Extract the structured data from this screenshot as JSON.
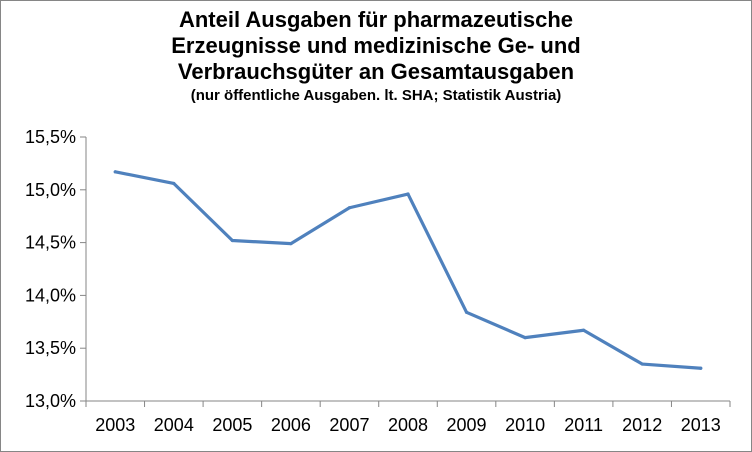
{
  "chart_data": {
    "type": "line",
    "title_lines": [
      "Anteil Ausgaben für pharmazeutische",
      "Erzeugnisse und medizinische Ge- und",
      "Verbrauchsgüter an Gesamtausgaben"
    ],
    "subtitle": "(nur öffentliche Ausgaben. lt. SHA; Statistik Austria)",
    "xlabel": "",
    "ylabel": "",
    "categories": [
      "2003",
      "2004",
      "2005",
      "2006",
      "2007",
      "2008",
      "2009",
      "2010",
      "2011",
      "2012",
      "2013"
    ],
    "series": [
      {
        "values": [
          15.17,
          15.06,
          14.52,
          14.49,
          14.83,
          14.96,
          13.84,
          13.6,
          13.67,
          13.35,
          13.31
        ],
        "color": "#4f81bd"
      }
    ],
    "ylim": [
      13.0,
      15.5
    ],
    "yticks": [
      13.0,
      13.5,
      14.0,
      14.5,
      15.0,
      15.5
    ],
    "ytick_labels": [
      "13,0%",
      "13,5%",
      "14,0%",
      "14,5%",
      "15,0%",
      "15,5%"
    ],
    "grid": false,
    "legend": "none"
  }
}
